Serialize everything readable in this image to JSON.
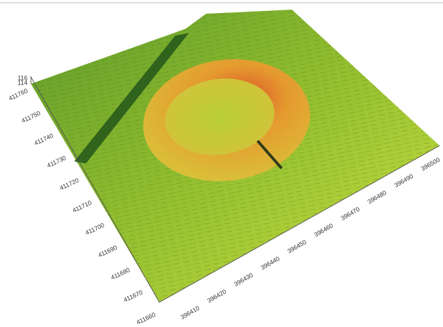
{
  "axes": {
    "z": {
      "ticks": [
        "116",
        "114"
      ]
    },
    "y": {
      "ticks": [
        "411660",
        "411670",
        "411680",
        "411690",
        "411700",
        "411710",
        "411720",
        "411730",
        "411740",
        "411750",
        "411760"
      ]
    },
    "x": {
      "ticks": [
        "396410",
        "396420",
        "396430",
        "396440",
        "396450",
        "396460",
        "396470",
        "396480",
        "396490",
        "396500"
      ]
    }
  }
}
